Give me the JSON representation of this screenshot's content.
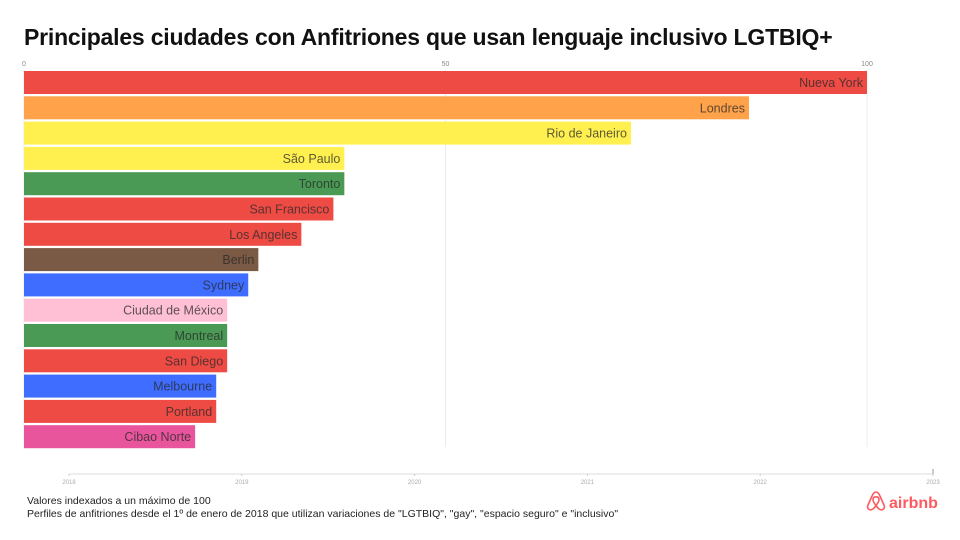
{
  "chart_data": {
    "type": "bar",
    "orientation": "horizontal",
    "title": "Principales ciudades con Anfitriones que usan lenguaje inclusivo LGTBIQ+",
    "xlabel": "",
    "ylabel": "",
    "xlim": [
      0,
      100
    ],
    "x_ticks": [
      "0",
      "50",
      "100"
    ],
    "grid": true,
    "categories": [
      "Nueva York",
      "Londres",
      "Rio de Janeiro",
      "São Paulo",
      "Toronto",
      "San Francisco",
      "Los Angeles",
      "Berlin",
      "Sydney",
      "Ciudad de México",
      "Montreal",
      "San Diego",
      "Melbourne",
      "Portland",
      "Cibao Norte"
    ],
    "values": [
      100,
      86,
      72,
      38,
      38,
      36.7,
      32.9,
      27.8,
      26.6,
      24.1,
      24.1,
      24.1,
      22.8,
      22.8,
      20.3
    ],
    "colors": [
      "#ee4b45",
      "#ffa24a",
      "#fff050",
      "#fff050",
      "#4a9a55",
      "#ee4b45",
      "#ee4b45",
      "#7a5a44",
      "#3f6dff",
      "#ffc0d6",
      "#4a9a55",
      "#ee4b45",
      "#3f6dff",
      "#ee4b45",
      "#e8559c"
    ],
    "timeline": {
      "ticks": [
        "2018",
        "2019",
        "2020",
        "2021",
        "2022",
        "2023"
      ],
      "progress": 1.0
    }
  },
  "footer": {
    "line1": "Valores indexados a un máximo de 100",
    "line2": "Perfiles de anfitriones desde el 1º de enero de 2018 que utilizan variaciones de \"LGTBIQ\", \"gay\", \"espacio seguro\" e \"inclusivo\""
  },
  "logo": {
    "text": "airbnb",
    "icon": "airbnb-belo-icon",
    "color": "#ff5a5f"
  }
}
